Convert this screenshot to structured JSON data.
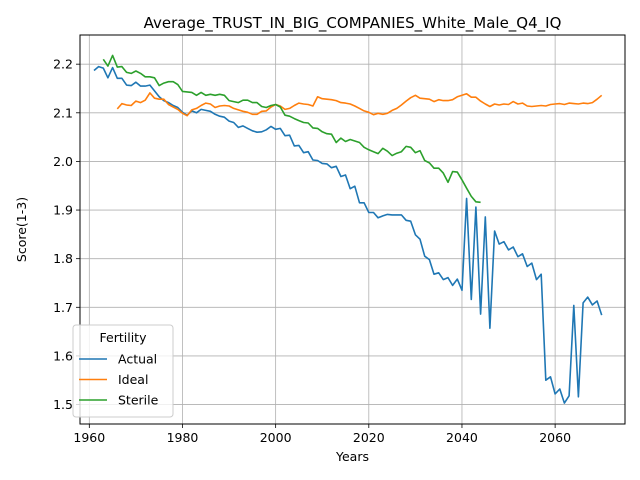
{
  "chart_data": {
    "type": "line",
    "title": "Average_TRUST_IN_BIG_COMPANIES_White_Male_Q4_IQ",
    "xlabel": "Years",
    "ylabel": "Score(1-3)",
    "xlim": [
      1958,
      2075
    ],
    "ylim": [
      1.46,
      2.26
    ],
    "xticks": [
      1960,
      1980,
      2000,
      2020,
      2040,
      2060
    ],
    "yticks": [
      1.5,
      1.6,
      1.7,
      1.8,
      1.9,
      2.0,
      2.1,
      2.2
    ],
    "xtick_labels": [
      "1960",
      "1980",
      "2000",
      "2020",
      "2040",
      "2060"
    ],
    "ytick_labels": [
      "1.5",
      "1.6",
      "1.7",
      "1.8",
      "1.9",
      "2.0",
      "2.1",
      "2.2"
    ],
    "grid": true,
    "legend": {
      "title": "Fertility",
      "placement": "lower-left"
    },
    "series": [
      {
        "name": "Actual",
        "color": "#1f77b4",
        "x": [
          1961,
          1962,
          1963,
          1964,
          1965,
          1966,
          1967,
          1968,
          1969,
          1970,
          1971,
          1972,
          1973,
          1974,
          1975,
          1976,
          1977,
          1978,
          1979,
          1980,
          1981,
          1982,
          1983,
          1984,
          1985,
          1986,
          1987,
          1988,
          1989,
          1990,
          1991,
          1992,
          1993,
          1994,
          1995,
          1996,
          1997,
          1998,
          1999,
          2000,
          2001,
          2002,
          2003,
          2004,
          2005,
          2006,
          2007,
          2008,
          2009,
          2010,
          2011,
          2012,
          2013,
          2014,
          2015,
          2016,
          2017,
          2018,
          2019,
          2020,
          2021,
          2022,
          2023,
          2024,
          2025,
          2026,
          2027,
          2028,
          2029,
          2030,
          2031,
          2032,
          2033,
          2034,
          2035,
          2036,
          2037,
          2038,
          2039,
          2040,
          2041,
          2042,
          2043,
          2044,
          2045,
          2046,
          2047,
          2048,
          2049,
          2050,
          2051,
          2052,
          2053,
          2054,
          2055,
          2056,
          2057,
          2058,
          2059,
          2060,
          2061,
          2062,
          2063,
          2064,
          2065,
          2066,
          2067,
          2068,
          2069,
          2070
        ],
        "values": [
          2.187,
          2.195,
          2.192,
          2.172,
          2.193,
          2.171,
          2.171,
          2.157,
          2.156,
          2.163,
          2.155,
          2.155,
          2.157,
          2.145,
          2.133,
          2.125,
          2.121,
          2.115,
          2.111,
          2.101,
          2.095,
          2.104,
          2.1,
          2.107,
          2.105,
          2.103,
          2.097,
          2.093,
          2.091,
          2.083,
          2.08,
          2.07,
          2.073,
          2.068,
          2.063,
          2.06,
          2.061,
          2.065,
          2.072,
          2.066,
          2.068,
          2.053,
          2.054,
          2.032,
          2.033,
          2.018,
          2.02,
          2.003,
          2.002,
          1.996,
          1.995,
          1.987,
          1.99,
          1.969,
          1.972,
          1.944,
          1.949,
          1.915,
          1.915,
          1.895,
          1.895,
          1.884,
          1.888,
          1.891,
          1.89,
          1.89,
          1.89,
          1.879,
          1.877,
          1.849,
          1.84,
          1.805,
          1.798,
          1.768,
          1.771,
          1.757,
          1.761,
          1.745,
          1.758,
          1.735,
          1.924,
          1.716,
          1.906,
          1.686,
          1.886,
          1.657,
          1.857,
          1.83,
          1.835,
          1.818,
          1.824,
          1.804,
          1.81,
          1.784,
          1.791,
          1.757,
          1.768,
          1.55,
          1.557,
          1.522,
          1.532,
          1.503,
          1.518,
          1.704,
          1.516,
          1.709,
          1.721,
          1.705,
          1.713,
          1.684
        ]
      },
      {
        "name": "Ideal",
        "color": "#ff7f0e",
        "x": [
          1966,
          1967,
          1968,
          1969,
          1970,
          1971,
          1972,
          1973,
          1974,
          1975,
          1976,
          1977,
          1978,
          1979,
          1980,
          1981,
          1982,
          1983,
          1984,
          1985,
          1986,
          1987,
          1988,
          1989,
          1990,
          1991,
          1992,
          1993,
          1994,
          1995,
          1996,
          1997,
          1998,
          1999,
          2000,
          2001,
          2002,
          2003,
          2004,
          2005,
          2006,
          2007,
          2008,
          2009,
          2010,
          2011,
          2012,
          2013,
          2014,
          2015,
          2016,
          2017,
          2018,
          2019,
          2020,
          2021,
          2022,
          2023,
          2024,
          2025,
          2026,
          2027,
          2028,
          2029,
          2030,
          2031,
          2032,
          2033,
          2034,
          2035,
          2036,
          2037,
          2038,
          2039,
          2040,
          2041,
          2042,
          2043,
          2044,
          2045,
          2046,
          2047,
          2048,
          2049,
          2050,
          2051,
          2052,
          2053,
          2054,
          2055,
          2056,
          2057,
          2058,
          2059,
          2060,
          2061,
          2062,
          2063,
          2064,
          2065,
          2066,
          2067,
          2068,
          2069,
          2070
        ],
        "values": [
          2.108,
          2.119,
          2.116,
          2.115,
          2.124,
          2.121,
          2.126,
          2.141,
          2.13,
          2.128,
          2.128,
          2.117,
          2.112,
          2.107,
          2.099,
          2.094,
          2.106,
          2.109,
          2.115,
          2.12,
          2.118,
          2.111,
          2.114,
          2.115,
          2.114,
          2.109,
          2.106,
          2.103,
          2.101,
          2.097,
          2.097,
          2.103,
          2.104,
          2.112,
          2.117,
          2.114,
          2.107,
          2.109,
          2.115,
          2.12,
          2.118,
          2.117,
          2.114,
          2.133,
          2.129,
          2.128,
          2.127,
          2.125,
          2.121,
          2.12,
          2.118,
          2.114,
          2.109,
          2.104,
          2.101,
          2.096,
          2.099,
          2.097,
          2.099,
          2.105,
          2.109,
          2.116,
          2.124,
          2.131,
          2.136,
          2.13,
          2.129,
          2.128,
          2.123,
          2.127,
          2.125,
          2.125,
          2.127,
          2.133,
          2.136,
          2.139,
          2.132,
          2.132,
          2.124,
          2.118,
          2.113,
          2.118,
          2.116,
          2.118,
          2.117,
          2.123,
          2.118,
          2.12,
          2.114,
          2.113,
          2.114,
          2.115,
          2.114,
          2.117,
          2.118,
          2.119,
          2.117,
          2.12,
          2.119,
          2.118,
          2.12,
          2.119,
          2.121,
          2.128,
          2.136
        ]
      },
      {
        "name": "Sterile",
        "color": "#2ca02c",
        "x": [
          1963,
          1964,
          1965,
          1966,
          1967,
          1968,
          1969,
          1970,
          1971,
          1972,
          1973,
          1974,
          1975,
          1976,
          1977,
          1978,
          1979,
          1980,
          1981,
          1982,
          1983,
          1984,
          1985,
          1986,
          1987,
          1988,
          1989,
          1990,
          1991,
          1992,
          1993,
          1994,
          1995,
          1996,
          1997,
          1998,
          1999,
          2000,
          2001,
          2002,
          2003,
          2004,
          2005,
          2006,
          2007,
          2008,
          2009,
          2010,
          2011,
          2012,
          2013,
          2014,
          2015,
          2016,
          2017,
          2018,
          2019,
          2020,
          2021,
          2022,
          2023,
          2024,
          2025,
          2026,
          2027,
          2028,
          2029,
          2030,
          2031,
          2032,
          2033,
          2034,
          2035,
          2036,
          2037,
          2038,
          2039,
          2040,
          2041,
          2042,
          2043,
          2044
        ],
        "values": [
          2.21,
          2.196,
          2.218,
          2.194,
          2.195,
          2.183,
          2.181,
          2.186,
          2.181,
          2.174,
          2.174,
          2.172,
          2.156,
          2.161,
          2.164,
          2.164,
          2.158,
          2.144,
          2.143,
          2.142,
          2.136,
          2.142,
          2.136,
          2.138,
          2.136,
          2.138,
          2.136,
          2.125,
          2.123,
          2.121,
          2.126,
          2.126,
          2.121,
          2.121,
          2.113,
          2.111,
          2.115,
          2.117,
          2.112,
          2.095,
          2.093,
          2.088,
          2.084,
          2.08,
          2.079,
          2.069,
          2.068,
          2.061,
          2.057,
          2.056,
          2.039,
          2.048,
          2.041,
          2.045,
          2.042,
          2.039,
          2.029,
          2.024,
          2.02,
          2.016,
          2.027,
          2.021,
          2.012,
          2.017,
          2.02,
          2.031,
          2.029,
          2.018,
          2.022,
          2.002,
          1.997,
          1.986,
          1.986,
          1.976,
          1.957,
          1.979,
          1.978,
          1.962,
          1.945,
          1.928,
          1.917,
          1.916
        ]
      }
    ]
  }
}
